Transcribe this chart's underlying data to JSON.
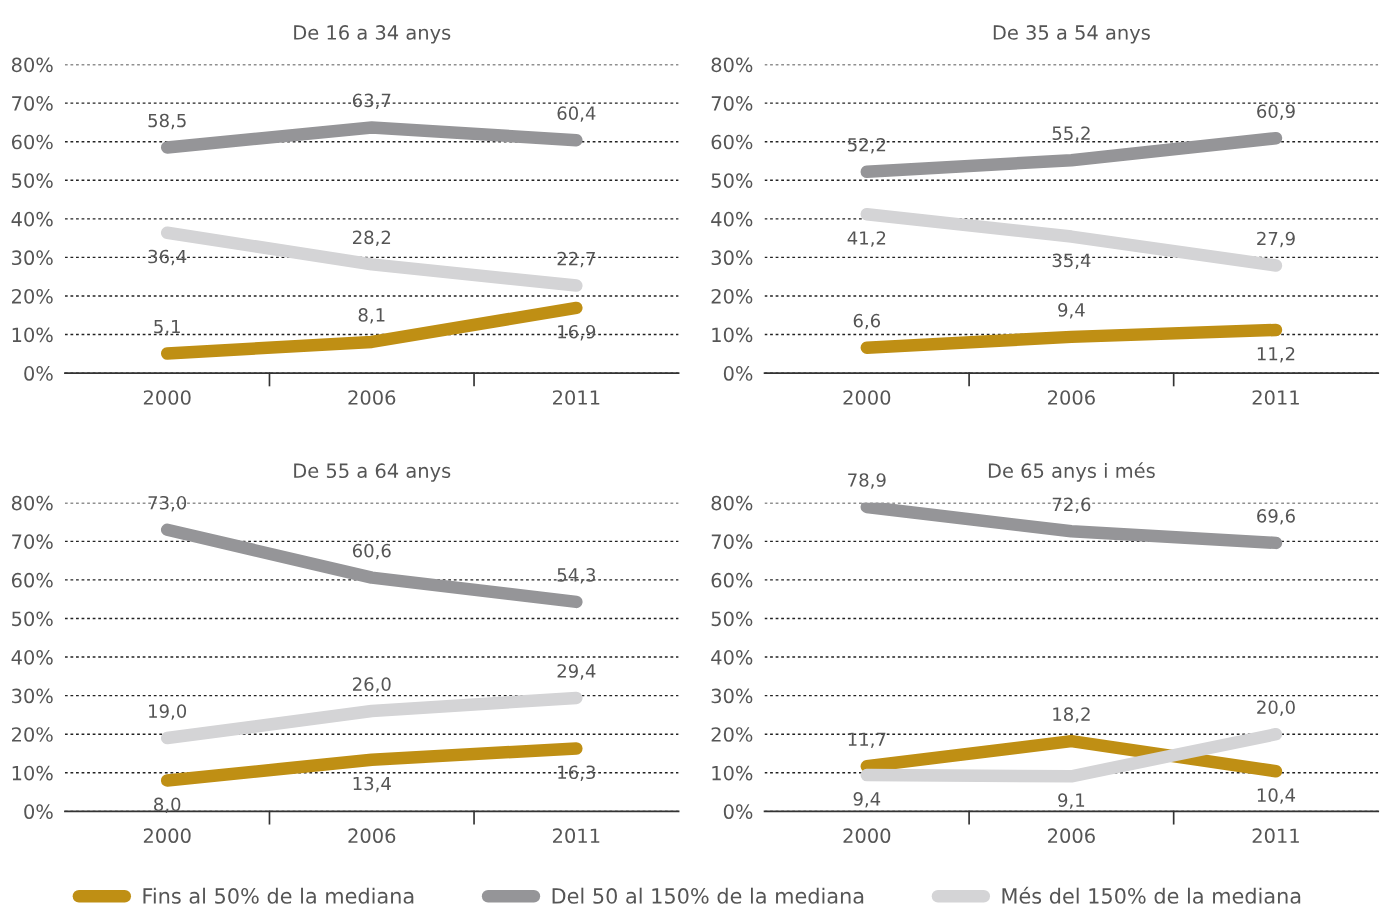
{
  "chart_data": [
    {
      "type": "line",
      "title": "De 16 a 34 anys",
      "categories": [
        "2000",
        "2006",
        "2011"
      ],
      "ylim": [
        0,
        80
      ],
      "yticks": [
        {
          "value": 0,
          "label": "0%"
        },
        {
          "value": 10,
          "label": "10%"
        },
        {
          "value": 20,
          "label": "20%"
        },
        {
          "value": 30,
          "label": "30%"
        },
        {
          "value": 40,
          "label": "40%"
        },
        {
          "value": 50,
          "label": "50%"
        },
        {
          "value": 60,
          "label": "60%"
        },
        {
          "value": 70,
          "label": "70%"
        },
        {
          "value": 80,
          "label": "80%"
        }
      ],
      "grid": "y",
      "legend": "bottom",
      "line_style": "solid",
      "marker": "none",
      "series": [
        {
          "name": "Fins al 50% de la mediana",
          "color": "#bf8f14",
          "values": [
            5.1,
            8.1,
            16.9
          ],
          "value_labels": [
            "5,1",
            "8,1",
            "16,9"
          ]
        },
        {
          "name": "Del 50 al 150% de la mediana",
          "color": "#959598",
          "values": [
            58.5,
            63.7,
            60.4
          ],
          "value_labels": [
            "58,5",
            "63,7",
            "60,4"
          ]
        },
        {
          "name": "Més del 150% de la mediana",
          "color": "#d4d4d6",
          "values": [
            36.4,
            28.2,
            22.7
          ],
          "value_labels": [
            "36,4",
            "28,2",
            "22,7"
          ]
        }
      ]
    },
    {
      "type": "line",
      "title": "De 35 a 54 anys",
      "categories": [
        "2000",
        "2006",
        "2011"
      ],
      "ylim": [
        0,
        80
      ],
      "yticks": [
        {
          "value": 0,
          "label": "0%"
        },
        {
          "value": 10,
          "label": "10%"
        },
        {
          "value": 20,
          "label": "20%"
        },
        {
          "value": 30,
          "label": "30%"
        },
        {
          "value": 40,
          "label": "40%"
        },
        {
          "value": 50,
          "label": "50%"
        },
        {
          "value": 60,
          "label": "60%"
        },
        {
          "value": 70,
          "label": "70%"
        },
        {
          "value": 80,
          "label": "80%"
        }
      ],
      "grid": "y",
      "legend": "bottom",
      "line_style": "solid",
      "marker": "none",
      "series": [
        {
          "name": "Fins al 50% de la mediana",
          "color": "#bf8f14",
          "values": [
            6.6,
            9.4,
            11.2
          ],
          "value_labels": [
            "6,6",
            "9,4",
            "11,2"
          ]
        },
        {
          "name": "Del 50 al 150% de la mediana",
          "color": "#959598",
          "values": [
            52.2,
            55.2,
            60.9
          ],
          "value_labels": [
            "52,2",
            "55,2",
            "60,9"
          ]
        },
        {
          "name": "Més del 150% de la mediana",
          "color": "#d4d4d6",
          "values": [
            41.2,
            35.4,
            27.9
          ],
          "value_labels": [
            "41,2",
            "35,4",
            "27,9"
          ]
        }
      ]
    },
    {
      "type": "line",
      "title": "De 55 a 64 anys",
      "categories": [
        "2000",
        "2006",
        "2011"
      ],
      "ylim": [
        0,
        80
      ],
      "yticks": [
        {
          "value": 0,
          "label": "0%"
        },
        {
          "value": 10,
          "label": "10%"
        },
        {
          "value": 20,
          "label": "20%"
        },
        {
          "value": 30,
          "label": "30%"
        },
        {
          "value": 40,
          "label": "40%"
        },
        {
          "value": 50,
          "label": "50%"
        },
        {
          "value": 60,
          "label": "60%"
        },
        {
          "value": 70,
          "label": "70%"
        },
        {
          "value": 80,
          "label": "80%"
        }
      ],
      "grid": "y",
      "legend": "bottom",
      "line_style": "solid",
      "marker": "none",
      "series": [
        {
          "name": "Fins al 50% de la mediana",
          "color": "#bf8f14",
          "values": [
            8.0,
            13.4,
            16.3
          ],
          "value_labels": [
            "8,0",
            "13,4",
            "16,3"
          ]
        },
        {
          "name": "Del 50 al 150% de la mediana",
          "color": "#959598",
          "values": [
            73.0,
            60.6,
            54.3
          ],
          "value_labels": [
            "73,0",
            "60,6",
            "54,3"
          ]
        },
        {
          "name": "Més del 150% de la mediana",
          "color": "#d4d4d6",
          "values": [
            19.0,
            26.0,
            29.4
          ],
          "value_labels": [
            "19,0",
            "26,0",
            "29,4"
          ]
        }
      ]
    },
    {
      "type": "line",
      "title": "De 65 anys i més",
      "categories": [
        "2000",
        "2006",
        "2011"
      ],
      "ylim": [
        0,
        80
      ],
      "yticks": [
        {
          "value": 0,
          "label": "0%"
        },
        {
          "value": 10,
          "label": "10%"
        },
        {
          "value": 20,
          "label": "20%"
        },
        {
          "value": 30,
          "label": "30%"
        },
        {
          "value": 40,
          "label": "40%"
        },
        {
          "value": 50,
          "label": "50%"
        },
        {
          "value": 60,
          "label": "60%"
        },
        {
          "value": 70,
          "label": "70%"
        },
        {
          "value": 80,
          "label": "80%"
        }
      ],
      "grid": "y",
      "legend": "bottom",
      "line_style": "solid",
      "marker": "none",
      "series": [
        {
          "name": "Fins al 50% de la mediana",
          "color": "#bf8f14",
          "values": [
            11.7,
            18.2,
            10.4
          ],
          "value_labels": [
            "11,7",
            "18,2",
            "10,4"
          ]
        },
        {
          "name": "Del 50 al 150% de la mediana",
          "color": "#959598",
          "values": [
            78.9,
            72.6,
            69.6
          ],
          "value_labels": [
            "78,9",
            "72,6",
            "69,6"
          ]
        },
        {
          "name": "Més del 150% de la mediana",
          "color": "#d4d4d6",
          "values": [
            9.4,
            9.1,
            20.0
          ],
          "value_labels": [
            "9,4",
            "9,1",
            "20,0"
          ]
        }
      ]
    }
  ]
}
